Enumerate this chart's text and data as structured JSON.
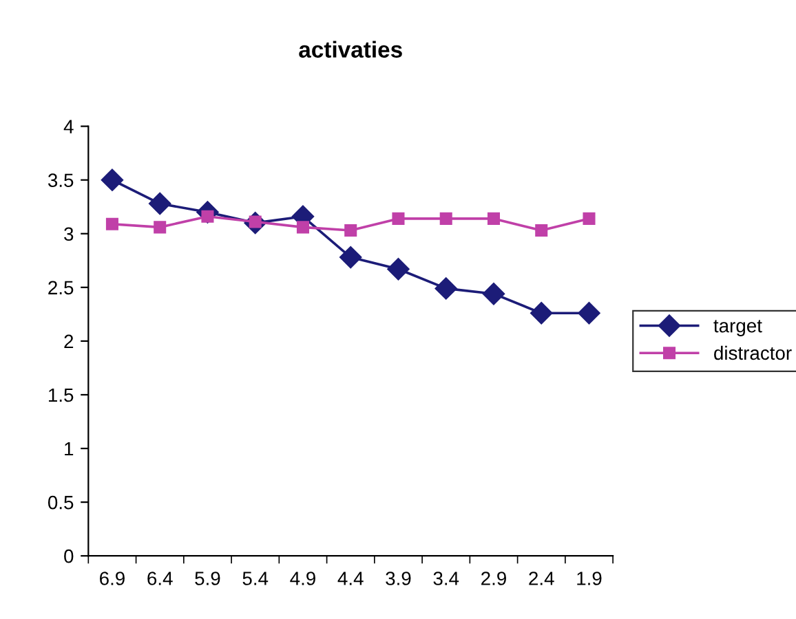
{
  "chart_data": {
    "type": "line",
    "title": "activaties",
    "categories": [
      "6.9",
      "6.4",
      "5.9",
      "5.4",
      "4.9",
      "4.4",
      "3.9",
      "3.4",
      "2.9",
      "2.4",
      "1.9"
    ],
    "series": [
      {
        "name": "target",
        "color": "#1c1c78",
        "marker": "diamond",
        "values": [
          3.5,
          3.28,
          3.2,
          3.1,
          3.16,
          2.78,
          2.67,
          2.49,
          2.44,
          2.26,
          2.26
        ]
      },
      {
        "name": "distractor",
        "color": "#c040a8",
        "marker": "square",
        "values": [
          3.09,
          3.06,
          3.16,
          3.11,
          3.06,
          3.03,
          3.14,
          3.14,
          3.14,
          3.03,
          3.14
        ]
      }
    ],
    "ylim": [
      0,
      4
    ],
    "yticks": [
      0,
      0.5,
      1,
      1.5,
      2,
      2.5,
      3,
      3.5,
      4
    ],
    "legend": "right",
    "line_style": "solid"
  }
}
